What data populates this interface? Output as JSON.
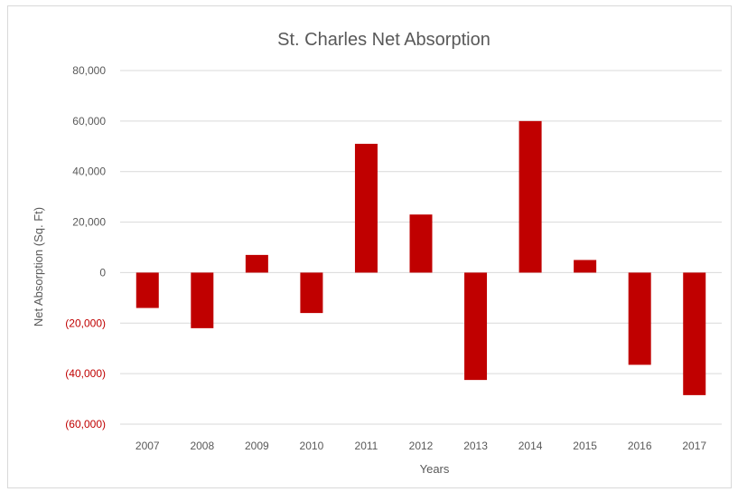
{
  "chart_data": {
    "type": "bar",
    "title": "St. Charles Net Absorption",
    "xlabel": "Years",
    "ylabel": "Net Absorption (Sq. Ft)",
    "categories": [
      "2007",
      "2008",
      "2009",
      "2010",
      "2011",
      "2012",
      "2013",
      "2014",
      "2015",
      "2016",
      "2017"
    ],
    "values": [
      -14000,
      -22000,
      7000,
      -16000,
      51000,
      23000,
      -42500,
      60000,
      5000,
      -36500,
      -48500
    ],
    "ylim": [
      -60000,
      80000
    ],
    "yticks": [
      80000,
      60000,
      40000,
      20000,
      0,
      -20000,
      -40000,
      -60000
    ],
    "ytick_labels": [
      "80,000",
      "60,000",
      "40,000",
      "20,000",
      "0",
      "(20,000)",
      "(40,000)",
      "(60,000)"
    ],
    "grid": true,
    "bar_color": "#c00000",
    "negative_label_color": "#c00000"
  }
}
